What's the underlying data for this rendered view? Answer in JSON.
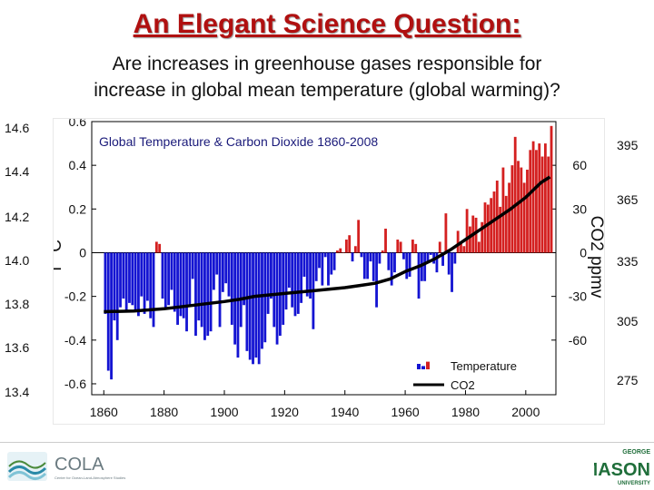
{
  "page": {
    "title": "An Elegant Science Question:",
    "subtitle_line1": "Are increases in greenhouse gases responsible for",
    "subtitle_line2": "increase in global mean temperature (global warming)?"
  },
  "outer_temp_labels": [
    "14.6",
    "14.4",
    "14.2",
    "14.0",
    "13.8",
    "13.6",
    "13.4"
  ],
  "outer_co2_labels": [
    "395",
    "365",
    "335",
    "305",
    "275"
  ],
  "logos": {
    "cola": "COLA",
    "cola_sub": "Center for Ocean-Land-Atmosphere Studies",
    "gmu_top": "GEORGE",
    "gmu_main": "MASON",
    "gmu_bottom": "UNIVERSITY"
  },
  "colors": {
    "positive_bar": "#d42020",
    "negative_bar": "#1414d2",
    "co2_line": "#000000",
    "title": "#b01010"
  },
  "chart_data": {
    "type": "bar",
    "title": "Global Temperature & Carbon Dioxide 1860-2008",
    "xlim": [
      1856,
      2010
    ],
    "x_ticks": [
      1860,
      1880,
      1900,
      1920,
      1940,
      1960,
      1980,
      2000
    ],
    "y_left": {
      "label": "T °C",
      "lim": [
        -0.65,
        0.6
      ],
      "ticks": [
        0.6,
        0.4,
        0.2,
        0,
        -0.2,
        -0.4,
        -0.6
      ],
      "tick_labels": [
        "0.6",
        "0.4",
        "0.2",
        "0",
        "-0.2",
        "-0.4",
        "-0.6"
      ]
    },
    "y_right": {
      "label": "CO2 ppmv",
      "ticks": [
        60,
        30,
        0,
        -30,
        -60
      ],
      "tick_labels": [
        "60",
        "30",
        "0",
        "-30",
        "-60"
      ]
    },
    "legend": {
      "position": "bottom-right",
      "entries": [
        "Temperature",
        "CO2"
      ]
    },
    "series": [
      {
        "name": "Temperature",
        "kind": "bar",
        "x_start": 1860,
        "values": [
          -0.28,
          -0.54,
          -0.58,
          -0.31,
          -0.4,
          -0.25,
          -0.21,
          -0.27,
          -0.23,
          -0.24,
          -0.26,
          -0.29,
          -0.2,
          -0.28,
          -0.22,
          -0.3,
          -0.34,
          0.05,
          0.04,
          -0.21,
          -0.26,
          -0.24,
          -0.17,
          -0.27,
          -0.33,
          -0.29,
          -0.3,
          -0.36,
          -0.24,
          -0.12,
          -0.38,
          -0.31,
          -0.34,
          -0.4,
          -0.38,
          -0.36,
          -0.17,
          -0.1,
          -0.34,
          -0.18,
          -0.14,
          -0.2,
          -0.33,
          -0.42,
          -0.48,
          -0.34,
          -0.24,
          -0.45,
          -0.49,
          -0.51,
          -0.48,
          -0.51,
          -0.44,
          -0.41,
          -0.28,
          -0.21,
          -0.34,
          -0.42,
          -0.38,
          -0.33,
          -0.26,
          -0.16,
          -0.25,
          -0.29,
          -0.28,
          -0.23,
          -0.11,
          -0.2,
          -0.21,
          -0.35,
          -0.13,
          -0.07,
          -0.15,
          -0.02,
          -0.15,
          -0.1,
          -0.08,
          0.01,
          0.02,
          0.0,
          0.06,
          0.08,
          -0.04,
          0.03,
          0.15,
          -0.02,
          -0.12,
          -0.12,
          -0.04,
          -0.13,
          -0.25,
          -0.05,
          0.01,
          0.11,
          -0.08,
          -0.15,
          -0.09,
          0.06,
          0.05,
          -0.03,
          -0.12,
          -0.11,
          0.06,
          0.04,
          -0.21,
          -0.13,
          -0.13,
          -0.04,
          -0.01,
          -0.05,
          -0.09,
          0.05,
          -0.06,
          0.18,
          -0.1,
          -0.18,
          -0.05,
          0.1,
          0.05,
          0.03,
          0.2,
          0.12,
          0.17,
          0.16,
          0.05,
          0.14,
          0.23,
          0.22,
          0.25,
          0.28,
          0.33,
          0.21,
          0.39,
          0.26,
          0.32,
          0.4,
          0.53,
          0.42,
          0.39,
          0.32,
          0.38,
          0.47,
          0.51,
          0.47,
          0.5,
          0.44,
          0.5,
          0.44,
          0.58
        ]
      },
      {
        "name": "CO2",
        "kind": "line",
        "points": [
          [
            1860,
            -40.5
          ],
          [
            1870,
            -40
          ],
          [
            1880,
            -38.5
          ],
          [
            1890,
            -36
          ],
          [
            1900,
            -33.5
          ],
          [
            1905,
            -32
          ],
          [
            1910,
            -30
          ],
          [
            1920,
            -28
          ],
          [
            1930,
            -26
          ],
          [
            1940,
            -24
          ],
          [
            1945,
            -22.5
          ],
          [
            1950,
            -21
          ],
          [
            1955,
            -18
          ],
          [
            1960,
            -13
          ],
          [
            1965,
            -9
          ],
          [
            1970,
            -4
          ],
          [
            1975,
            2
          ],
          [
            1980,
            9
          ],
          [
            1985,
            16
          ],
          [
            1990,
            23
          ],
          [
            1995,
            30
          ],
          [
            2000,
            38
          ],
          [
            2005,
            48
          ],
          [
            2008,
            52
          ]
        ]
      }
    ]
  }
}
